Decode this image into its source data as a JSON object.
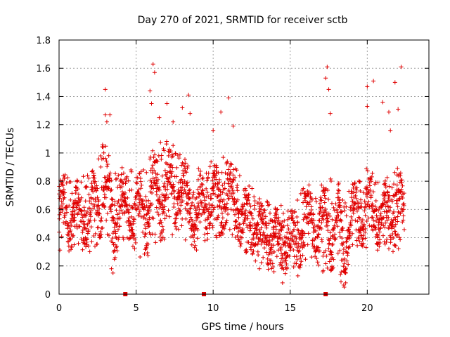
{
  "chart_data": {
    "type": "scatter",
    "title": "Day 270 of 2021, SRMTID for receiver sctb",
    "xlabel": "GPS time / hours",
    "ylabel": "SRMTID / TECUs",
    "xlim": [
      0,
      24
    ],
    "ylim": [
      0,
      1.8
    ],
    "x_ticks": [
      "0",
      "5",
      "10",
      "15",
      "20"
    ],
    "y_ticks": [
      "0",
      "0.2",
      "0.4",
      "0.6",
      "0.8",
      "1",
      "1.2",
      "1.4",
      "1.6",
      "1.8"
    ],
    "x_tick_values": [
      0,
      5,
      10,
      15,
      20
    ],
    "y_tick_values": [
      0,
      0.2,
      0.4,
      0.6,
      0.8,
      1.0,
      1.2,
      1.4,
      1.6,
      1.8
    ],
    "grid": true,
    "marker": "plus",
    "series_color": "#e00000",
    "data_gap_markers_x": [
      4.3,
      9.4,
      17.3
    ],
    "series": [
      {
        "name": "SRMTID",
        "envelope": [
          {
            "x": 0.0,
            "lo": 0.3,
            "hi": 0.8
          },
          {
            "x": 0.3,
            "lo": 0.2,
            "hi": 0.95
          },
          {
            "x": 1.0,
            "lo": 0.3,
            "hi": 0.8
          },
          {
            "x": 2.0,
            "lo": 0.3,
            "hi": 0.9
          },
          {
            "x": 3.0,
            "lo": 0.35,
            "hi": 1.1
          },
          {
            "x": 3.5,
            "lo": 0.2,
            "hi": 0.95
          },
          {
            "x": 4.0,
            "lo": 0.35,
            "hi": 0.9
          },
          {
            "x": 5.0,
            "lo": 0.3,
            "hi": 0.9
          },
          {
            "x": 5.5,
            "lo": 0.2,
            "hi": 0.95
          },
          {
            "x": 6.0,
            "lo": 0.3,
            "hi": 1.05
          },
          {
            "x": 7.0,
            "lo": 0.4,
            "hi": 1.1
          },
          {
            "x": 8.0,
            "lo": 0.4,
            "hi": 1.0
          },
          {
            "x": 9.0,
            "lo": 0.3,
            "hi": 0.9
          },
          {
            "x": 10.0,
            "lo": 0.4,
            "hi": 0.95
          },
          {
            "x": 11.0,
            "lo": 0.4,
            "hi": 1.0
          },
          {
            "x": 12.0,
            "lo": 0.3,
            "hi": 0.8
          },
          {
            "x": 13.0,
            "lo": 0.2,
            "hi": 0.7
          },
          {
            "x": 14.0,
            "lo": 0.15,
            "hi": 0.65
          },
          {
            "x": 15.0,
            "lo": 0.15,
            "hi": 0.6
          },
          {
            "x": 16.0,
            "lo": 0.2,
            "hi": 0.8
          },
          {
            "x": 17.0,
            "lo": 0.15,
            "hi": 0.8
          },
          {
            "x": 18.0,
            "lo": 0.1,
            "hi": 0.85
          },
          {
            "x": 18.5,
            "lo": 0.05,
            "hi": 0.7
          },
          {
            "x": 19.0,
            "lo": 0.3,
            "hi": 0.8
          },
          {
            "x": 20.0,
            "lo": 0.3,
            "hi": 0.9
          },
          {
            "x": 21.0,
            "lo": 0.3,
            "hi": 0.8
          },
          {
            "x": 22.0,
            "lo": 0.3,
            "hi": 0.9
          },
          {
            "x": 22.4,
            "lo": 0.35,
            "hi": 0.8
          }
        ],
        "outliers": [
          {
            "x": 3.0,
            "y": 1.45
          },
          {
            "x": 3.0,
            "y": 1.27
          },
          {
            "x": 3.1,
            "y": 1.22
          },
          {
            "x": 3.3,
            "y": 1.27
          },
          {
            "x": 3.4,
            "y": 0.18
          },
          {
            "x": 3.5,
            "y": 0.15
          },
          {
            "x": 5.9,
            "y": 1.44
          },
          {
            "x": 6.0,
            "y": 1.35
          },
          {
            "x": 6.1,
            "y": 1.63
          },
          {
            "x": 6.2,
            "y": 1.57
          },
          {
            "x": 6.5,
            "y": 1.25
          },
          {
            "x": 7.0,
            "y": 1.35
          },
          {
            "x": 7.4,
            "y": 1.22
          },
          {
            "x": 8.0,
            "y": 1.32
          },
          {
            "x": 8.4,
            "y": 1.41
          },
          {
            "x": 8.5,
            "y": 1.28
          },
          {
            "x": 10.0,
            "y": 1.16
          },
          {
            "x": 10.5,
            "y": 1.29
          },
          {
            "x": 11.0,
            "y": 1.39
          },
          {
            "x": 11.3,
            "y": 1.19
          },
          {
            "x": 13.0,
            "y": 0.18
          },
          {
            "x": 14.5,
            "y": 0.08
          },
          {
            "x": 15.5,
            "y": 0.13
          },
          {
            "x": 17.3,
            "y": 1.53
          },
          {
            "x": 17.4,
            "y": 1.61
          },
          {
            "x": 17.5,
            "y": 1.45
          },
          {
            "x": 17.6,
            "y": 1.28
          },
          {
            "x": 18.5,
            "y": 0.05
          },
          {
            "x": 18.6,
            "y": 0.08
          },
          {
            "x": 20.0,
            "y": 1.47
          },
          {
            "x": 20.0,
            "y": 1.33
          },
          {
            "x": 20.4,
            "y": 1.51
          },
          {
            "x": 21.0,
            "y": 1.36
          },
          {
            "x": 21.4,
            "y": 1.29
          },
          {
            "x": 21.5,
            "y": 1.16
          },
          {
            "x": 21.8,
            "y": 1.5
          },
          {
            "x": 22.0,
            "y": 1.31
          },
          {
            "x": 22.2,
            "y": 1.61
          }
        ],
        "sample_interval_hours": 0.016,
        "x_range": [
          0,
          22.4
        ]
      }
    ]
  }
}
